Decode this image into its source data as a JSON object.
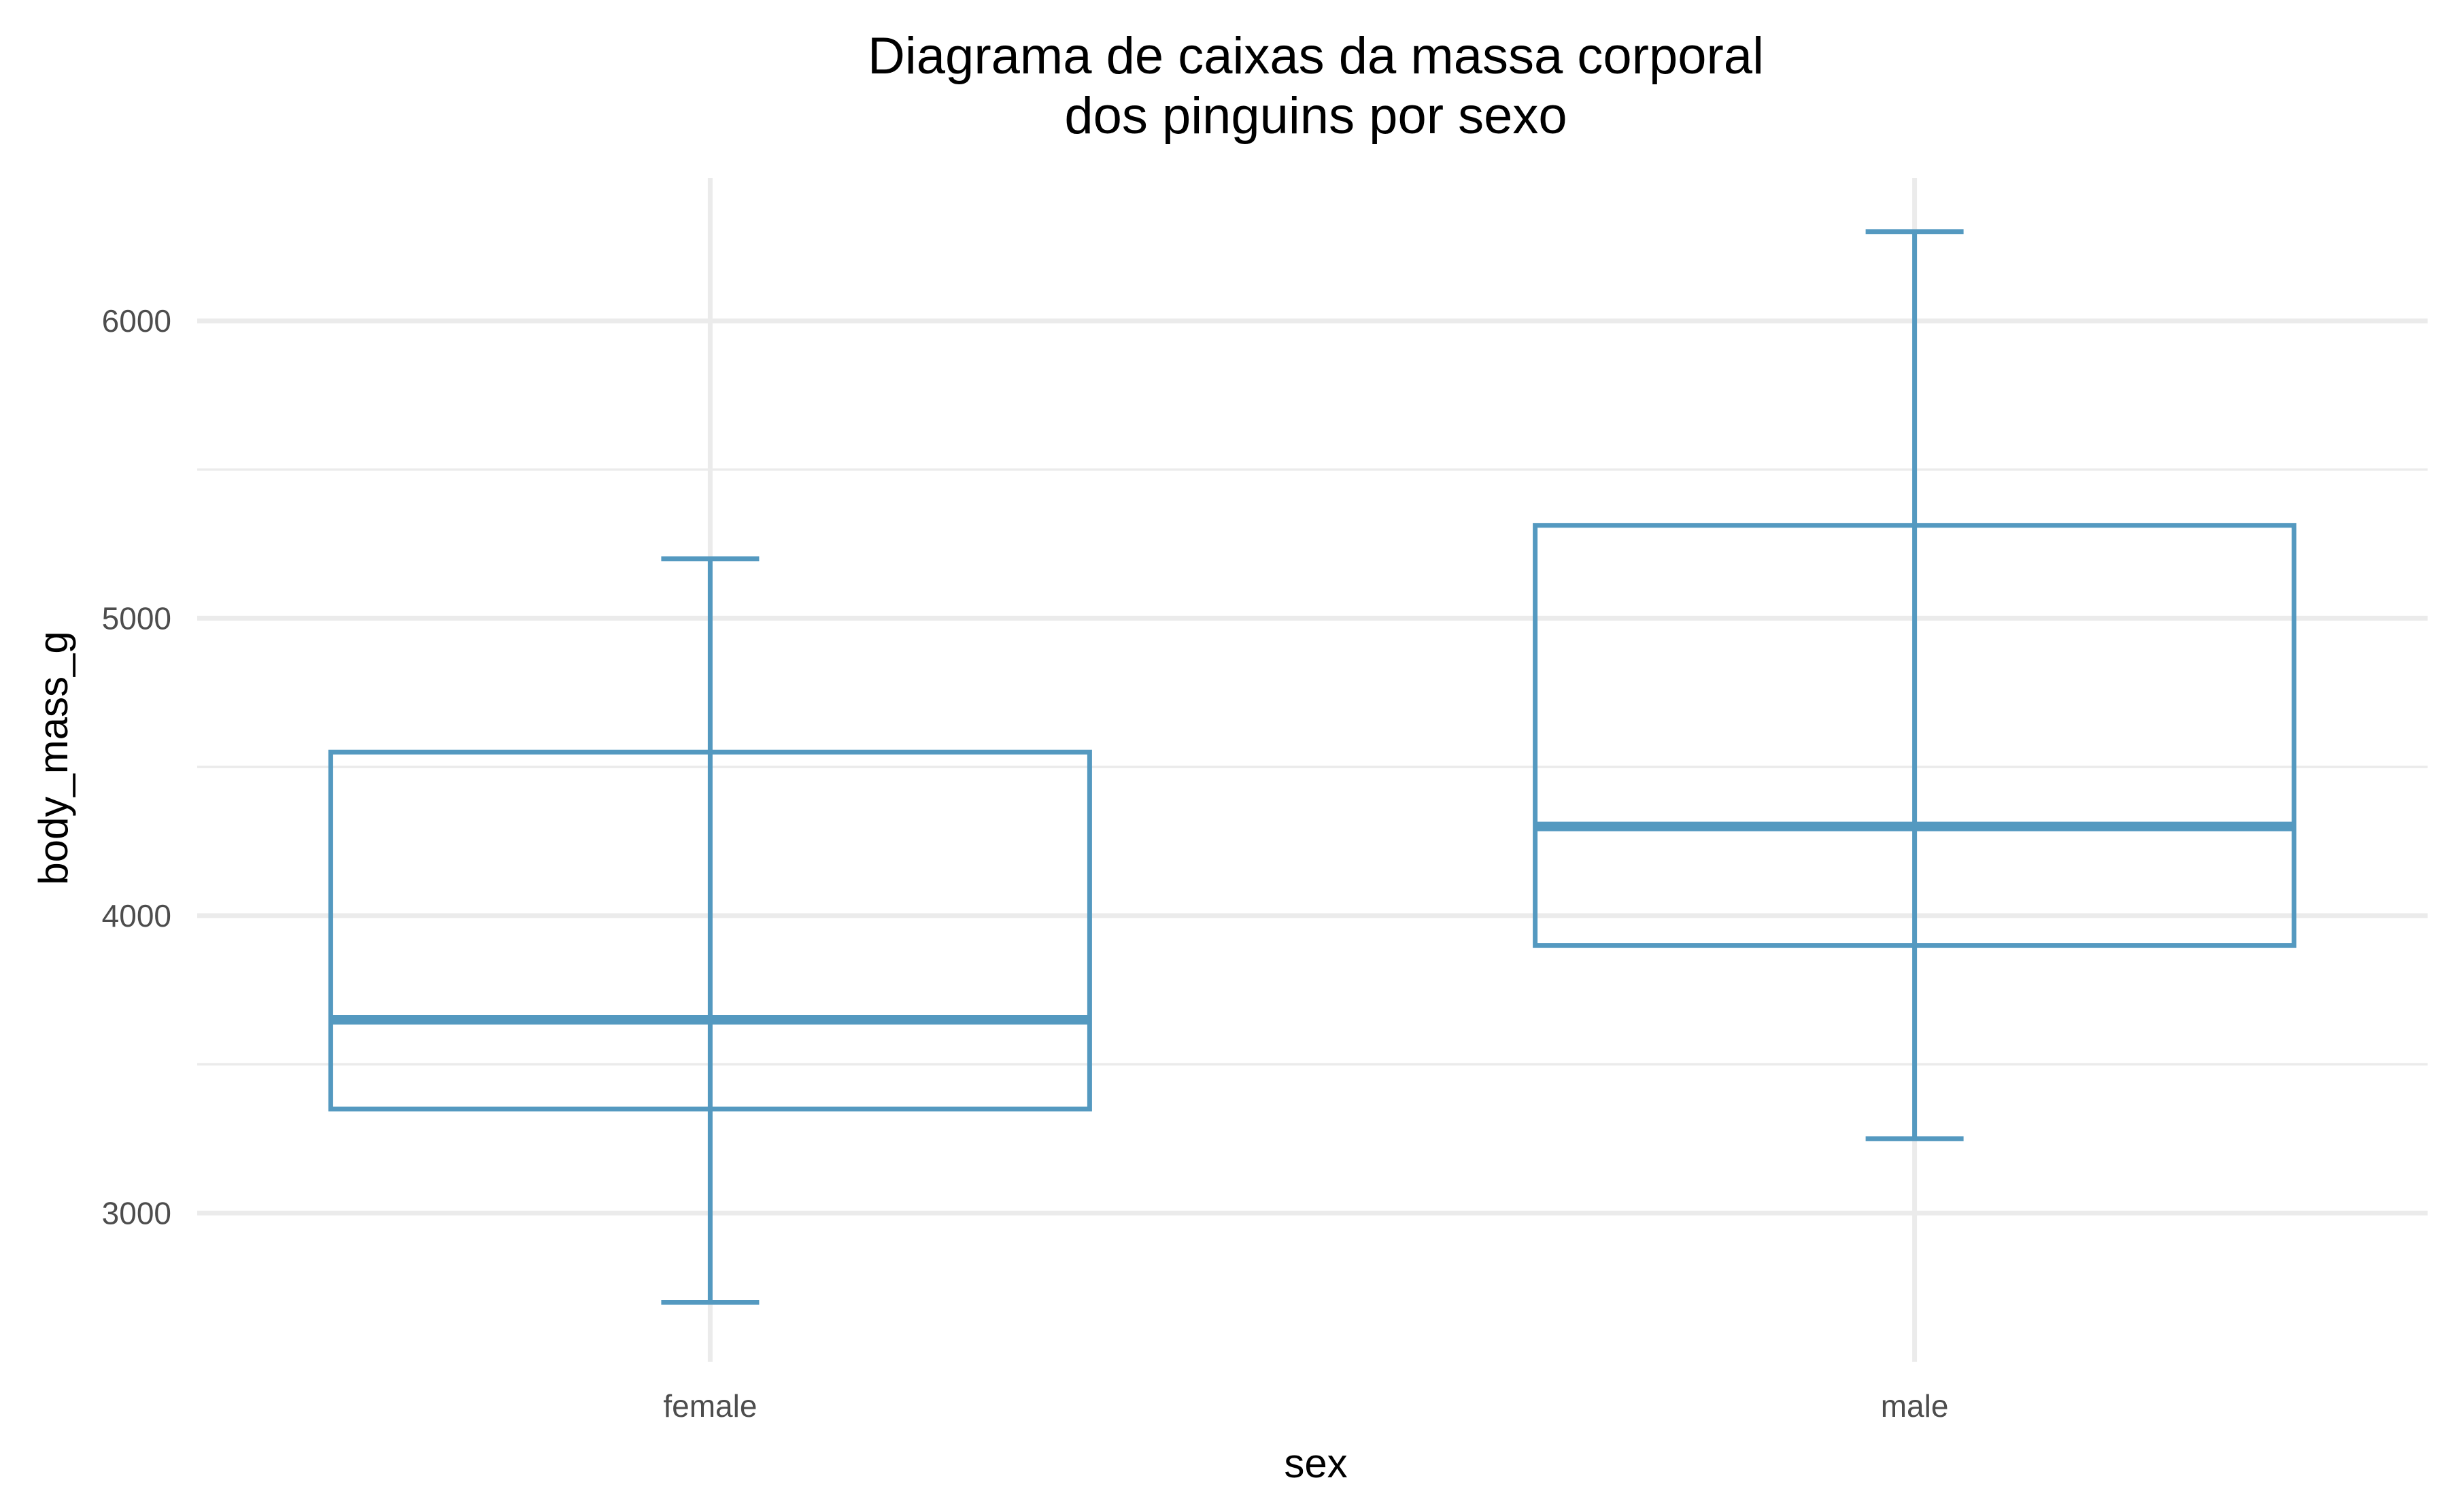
{
  "chart_data": {
    "type": "boxplot",
    "title": [
      "Diagrama de caixas da massa corporal",
      "dos pinguins por sexo"
    ],
    "xlabel": "sex",
    "ylabel": "body_mass_g",
    "ylim": [
      2500,
      6480
    ],
    "y_ticks": [
      3000,
      4000,
      5000,
      6000
    ],
    "y_minor_ticks": [
      3500,
      4500,
      5500
    ],
    "categories": [
      "female",
      "male"
    ],
    "boxes": [
      {
        "name": "female",
        "min": 2700,
        "q1": 3350,
        "median": 3650,
        "q3": 4550,
        "max": 5200
      },
      {
        "name": "male",
        "min": 3250,
        "q1": 3900,
        "median": 4300,
        "q3": 5312.5,
        "max": 6300
      }
    ],
    "grid": true,
    "color": "#5499c0"
  }
}
